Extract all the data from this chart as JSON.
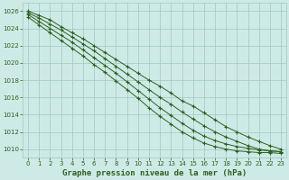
{
  "x": [
    0,
    1,
    2,
    3,
    4,
    5,
    6,
    7,
    8,
    9,
    10,
    11,
    12,
    13,
    14,
    15,
    16,
    17,
    18,
    19,
    20,
    21,
    22,
    23
  ],
  "lines": [
    [
      1026.0,
      1025.5,
      1025.0,
      1024.2,
      1023.5,
      1022.8,
      1022.0,
      1021.2,
      1020.4,
      1019.6,
      1018.8,
      1018.0,
      1017.3,
      1016.5,
      1015.6,
      1015.0,
      1014.2,
      1013.4,
      1012.6,
      1012.0,
      1011.4,
      1010.9,
      1010.4,
      1010.0
    ],
    [
      1025.8,
      1025.2,
      1024.5,
      1023.8,
      1023.0,
      1022.2,
      1021.4,
      1020.5,
      1019.6,
      1018.7,
      1017.8,
      1016.9,
      1016.0,
      1015.2,
      1014.3,
      1013.5,
      1012.7,
      1012.0,
      1011.4,
      1010.9,
      1010.4,
      1010.0,
      1009.8,
      1009.7
    ],
    [
      1025.6,
      1024.8,
      1024.0,
      1023.2,
      1022.4,
      1021.5,
      1020.6,
      1019.7,
      1018.8,
      1017.8,
      1016.8,
      1015.8,
      1014.8,
      1013.9,
      1013.0,
      1012.2,
      1011.5,
      1011.0,
      1010.6,
      1010.3,
      1010.1,
      1009.9,
      1009.8,
      1009.7
    ],
    [
      1025.3,
      1024.4,
      1023.5,
      1022.6,
      1021.7,
      1020.8,
      1019.8,
      1018.9,
      1017.9,
      1016.9,
      1015.9,
      1014.8,
      1013.8,
      1012.9,
      1012.0,
      1011.3,
      1010.7,
      1010.3,
      1010.0,
      1009.8,
      1009.7,
      1009.6,
      1009.6,
      1009.5
    ]
  ],
  "line_color": "#2d6020",
  "marker": "+",
  "markersize": 3,
  "markerwidth": 0.8,
  "linewidth": 0.7,
  "bg_color": "#ceeae6",
  "grid_color": "#9ec8c0",
  "tick_color": "#2d6020",
  "label_color": "#2d6020",
  "ylim": [
    1009,
    1027
  ],
  "yticks": [
    1010,
    1012,
    1014,
    1016,
    1018,
    1020,
    1022,
    1024,
    1026
  ],
  "xticks": [
    0,
    1,
    2,
    3,
    4,
    5,
    6,
    7,
    8,
    9,
    10,
    11,
    12,
    13,
    14,
    15,
    16,
    17,
    18,
    19,
    20,
    21,
    22,
    23
  ],
  "xlabel": "Graphe pression niveau de la mer (hPa)",
  "tick_fontsize": 5,
  "label_fontsize": 6.5
}
